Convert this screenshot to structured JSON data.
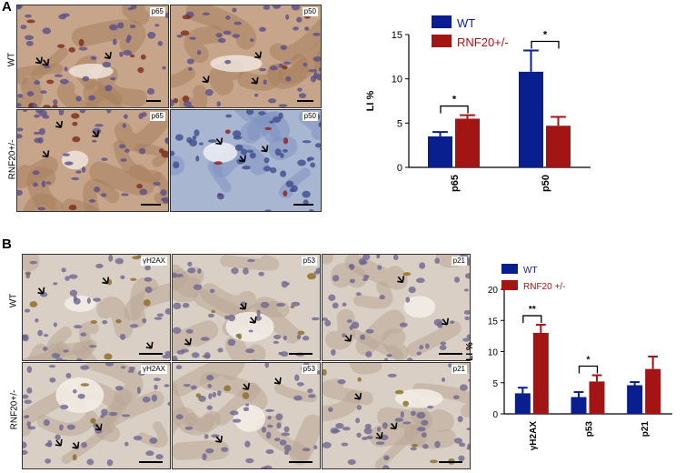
{
  "panelA": {
    "letter": "A",
    "row_labels": [
      "WT",
      "RNF20+/-"
    ],
    "tile_labels": [
      "p65",
      "p50",
      "p65",
      "p50"
    ]
  },
  "panelB": {
    "letter": "B",
    "row_labels": [
      "WT",
      "RNF20+/-"
    ],
    "tile_labels": [
      "γH2AX",
      "p53",
      "p21",
      "γH2AX",
      "p53",
      "p21"
    ]
  },
  "colors": {
    "wt": "#0a1f8f",
    "rnf20": "#a31414"
  },
  "chart_data": [
    {
      "type": "bar",
      "categories": [
        "p65",
        "p50"
      ],
      "series": [
        {
          "name": "WT",
          "values": [
            3.5,
            10.8
          ],
          "errors": [
            0.5,
            2.4
          ]
        },
        {
          "name": "RNF20+/-",
          "values": [
            5.5,
            4.7
          ],
          "errors": [
            0.4,
            1.0
          ]
        }
      ],
      "ylabel": "LI %",
      "ylim": [
        0,
        15
      ],
      "yticks": [
        0,
        5,
        10,
        15
      ],
      "significance": [
        "*",
        "*"
      ],
      "legend": "top-left"
    },
    {
      "type": "bar",
      "categories": [
        "γH2AX",
        "p53",
        "p21"
      ],
      "series": [
        {
          "name": "WT",
          "values": [
            3.3,
            2.7,
            4.6
          ],
          "errors": [
            0.9,
            0.8,
            0.5
          ]
        },
        {
          "name": "RNF20 +/-",
          "values": [
            13.0,
            5.2,
            7.2
          ],
          "errors": [
            1.3,
            1.0,
            2.0
          ]
        }
      ],
      "ylabel": "LI %",
      "ylim": [
        0,
        20
      ],
      "yticks": [
        0,
        5,
        10,
        15,
        20
      ],
      "significance": [
        "**",
        "*",
        ""
      ],
      "legend": "top-left"
    }
  ]
}
